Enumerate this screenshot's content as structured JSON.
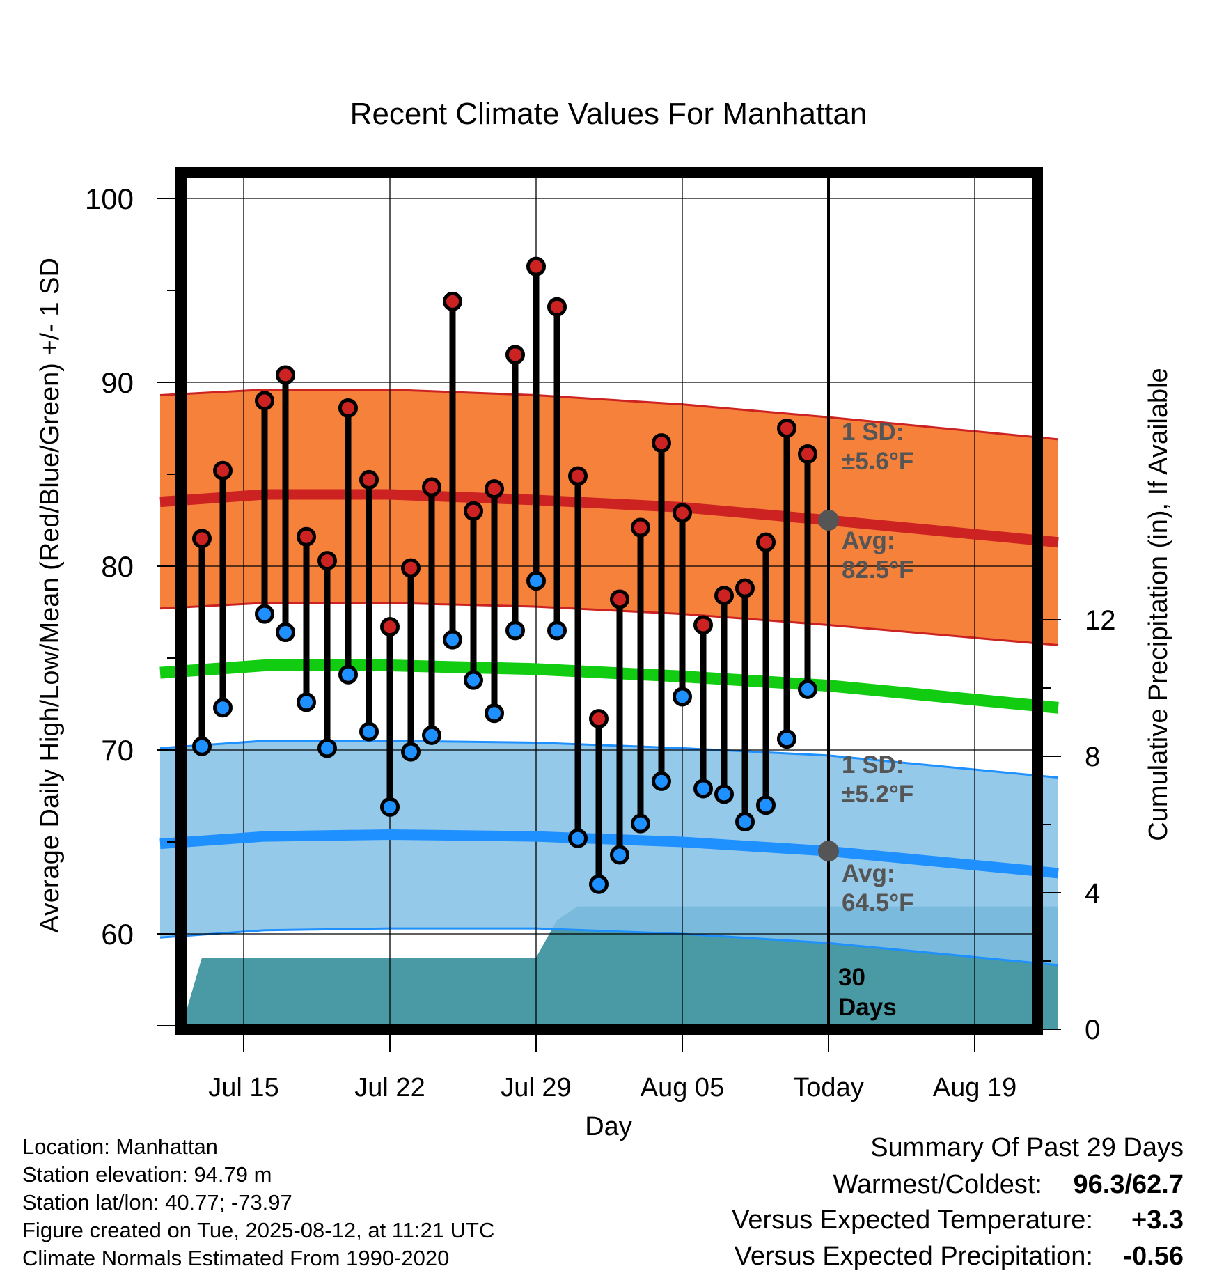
{
  "chart_data": {
    "type": "line",
    "title": "Recent Climate Values For Manhattan",
    "xlabel": "Day",
    "ylabel": "Average Daily High/Low/Mean (Red/Blue/Green) +/- 1 SD",
    "y2label": "Cumulative Precipitation (in), If Available",
    "ylim": [
      55,
      101.5
    ],
    "y2lim": [
      0,
      24
    ],
    "xlim": [
      "Jul 11",
      "Aug 23"
    ],
    "grid": true,
    "x_ticks": [
      {
        "date": "Jul 15",
        "label": "Jul 15"
      },
      {
        "date": "Jul 22",
        "label": "Jul 22"
      },
      {
        "date": "Jul 29",
        "label": "Jul 29"
      },
      {
        "date": "Aug 05",
        "label": "Aug 05"
      },
      {
        "date": "Aug 12",
        "label": "Today"
      },
      {
        "date": "Aug 19",
        "label": "Aug 19"
      }
    ],
    "y_ticks": [
      60,
      70,
      80,
      90,
      100
    ],
    "y2_ticks": [
      0,
      4,
      8,
      12
    ],
    "dates": [
      "Jul 13",
      "Jul 14",
      "Jul 15",
      "Jul 16",
      "Jul 17",
      "Jul 18",
      "Jul 19",
      "Jul 20",
      "Jul 21",
      "Jul 22",
      "Jul 23",
      "Jul 24",
      "Jul 25",
      "Jul 26",
      "Jul 27",
      "Jul 28",
      "Jul 29",
      "Jul 30",
      "Jul 31",
      "Aug 01",
      "Aug 02",
      "Aug 03",
      "Aug 04",
      "Aug 05",
      "Aug 06",
      "Aug 07",
      "Aug 08",
      "Aug 09",
      "Aug 10",
      "Aug 11"
    ],
    "series": [
      {
        "name": "High",
        "color": "#cc2222",
        "values": [
          81.5,
          85.2,
          null,
          89.0,
          90.4,
          81.6,
          80.3,
          88.6,
          84.7,
          76.7,
          79.9,
          84.3,
          94.4,
          83.0,
          84.2,
          91.5,
          96.3,
          94.1,
          84.9,
          71.7,
          78.2,
          82.1,
          86.7,
          82.9,
          76.8,
          78.4,
          78.8,
          81.3,
          87.5,
          86.1
        ]
      },
      {
        "name": "Low",
        "color": "#1e90ff",
        "values": [
          70.2,
          72.3,
          null,
          77.4,
          76.4,
          72.6,
          70.1,
          74.1,
          71.0,
          66.9,
          69.9,
          70.8,
          76.0,
          73.8,
          72.0,
          76.5,
          79.2,
          76.5,
          65.2,
          62.7,
          64.3,
          66.0,
          68.3,
          72.9,
          67.9,
          67.6,
          66.1,
          67.0,
          70.6,
          73.3
        ]
      }
    ],
    "normals": {
      "dates": [
        "Jul 11",
        "Jul 16",
        "Jul 22",
        "Jul 29",
        "Aug 05",
        "Aug 12",
        "Aug 23"
      ],
      "high_avg": [
        83.5,
        83.9,
        83.9,
        83.6,
        83.2,
        82.5,
        81.3
      ],
      "high_plus": [
        89.3,
        89.6,
        89.6,
        89.3,
        88.8,
        88.1,
        86.9
      ],
      "high_minus": [
        77.7,
        78.0,
        78.0,
        77.8,
        77.4,
        76.8,
        75.7
      ],
      "low_avg": [
        64.9,
        65.3,
        65.4,
        65.3,
        65.0,
        64.5,
        63.3
      ],
      "low_plus": [
        70.1,
        70.5,
        70.5,
        70.4,
        70.1,
        69.7,
        68.5
      ],
      "low_minus": [
        59.8,
        60.2,
        60.3,
        60.3,
        60.0,
        59.5,
        58.3
      ],
      "mean_avg": [
        74.2,
        74.6,
        74.6,
        74.4,
        74.0,
        73.5,
        72.3
      ]
    },
    "precip": {
      "dates": [
        "Jul 12",
        "Jul 13",
        "Jul 28",
        "Jul 29",
        "Jul 30",
        "Jul 31",
        "Aug 23"
      ],
      "values": [
        0,
        2.1,
        2.1,
        2.1,
        3.2,
        3.6,
        3.6
      ]
    },
    "colors": {
      "high_band": "#f47a30",
      "high_line": "#cc2222",
      "low_band": "#82c0e6",
      "low_line": "#1e90ff",
      "mean_line": "#11cc11",
      "precip_fill": "#4a9aa5",
      "annotation": "#555555"
    },
    "annotations": {
      "high_sd_1": "1 SD:",
      "high_sd_2": "±5.6°F",
      "high_avg_1": "Avg:",
      "high_avg_2": "82.5°F",
      "low_sd_1": "1 SD:",
      "low_sd_2": "±5.2°F",
      "low_avg_1": "Avg:",
      "low_avg_2": "64.5°F",
      "days_1": "30",
      "days_2": "Days"
    }
  },
  "info": {
    "location": "Location: Manhattan",
    "elevation": "Station elevation: 94.79 m",
    "latlon": "Station lat/lon: 40.77; -73.97",
    "created": "Figure created on Tue, 2025-08-12, at 11:21 UTC",
    "normals": "Climate Normals Estimated From 1990-2020"
  },
  "summary": {
    "title": "Summary Of Past 29 Days",
    "warmest_label": "Warmest/Coldest:",
    "warmest_value": "96.3",
    "slash": "/",
    "coldest_value": "62.7",
    "temp_label": "Versus Expected Temperature:",
    "temp_value": "+3.3",
    "temp_color": "#cc2222",
    "precip_label": "Versus Expected Precipitation:",
    "precip_value": "-0.56",
    "precip_color": "#a0522d"
  }
}
